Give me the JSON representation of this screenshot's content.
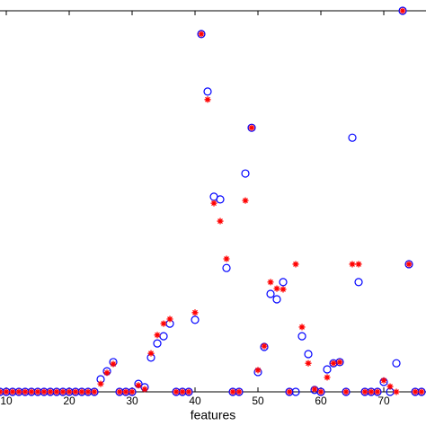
{
  "chart_data": {
    "type": "scatter",
    "xlabel": "features",
    "x": [
      9,
      10,
      11,
      12,
      13,
      14,
      15,
      16,
      17,
      18,
      19,
      20,
      21,
      22,
      23,
      24,
      25,
      26,
      27,
      28,
      29,
      30,
      31,
      32,
      33,
      34,
      35,
      36,
      37,
      38,
      39,
      40,
      41,
      42,
      43,
      44,
      45,
      46,
      47,
      48,
      49,
      50,
      51,
      52,
      53,
      54,
      55,
      56,
      57,
      58,
      59,
      60,
      61,
      62,
      63,
      64,
      65,
      66,
      67,
      68,
      69,
      70,
      71,
      72,
      73,
      74,
      75,
      76
    ],
    "series": [
      {
        "marker": "circle",
        "color": "#0000ff",
        "values": [
          0,
          0,
          0,
          0,
          0,
          0,
          0,
          0,
          0,
          0,
          0,
          0,
          0,
          0,
          0,
          0,
          3.3,
          5.4,
          7.8,
          0,
          0,
          0,
          2.1,
          1.2,
          9,
          12.7,
          14.6,
          17.9,
          0,
          0,
          0,
          18.9,
          93.9,
          78.8,
          51.2,
          50.5,
          32.5,
          0,
          0,
          57.3,
          69.3,
          5.2,
          11.8,
          25.7,
          24.3,
          28.8,
          0,
          0,
          14.6,
          9.9,
          0.5,
          0,
          5.9,
          7.5,
          7.8,
          0,
          66.7,
          28.8,
          0,
          0,
          0,
          2.6,
          0,
          7.5,
          100,
          33.5,
          0,
          0
        ]
      },
      {
        "marker": "star",
        "color": "#ff0000",
        "values": [
          0,
          0,
          0,
          0,
          0,
          0,
          0,
          0,
          0,
          0,
          0,
          0,
          0,
          0,
          0,
          0,
          2.1,
          5,
          7.3,
          0,
          0,
          0,
          1.7,
          0.7,
          10.1,
          14.9,
          17.9,
          19.1,
          0,
          0,
          0,
          20.8,
          93.9,
          76.7,
          49.5,
          44.8,
          34.9,
          0,
          0,
          50.2,
          69.3,
          5.7,
          12,
          28.8,
          27.1,
          26.9,
          0,
          33.5,
          17,
          7.5,
          0.7,
          0,
          3.8,
          7.5,
          7.8,
          0,
          33.5,
          33.5,
          0,
          0,
          0,
          3,
          1.4,
          0,
          100,
          33.5,
          0,
          0
        ]
      }
    ],
    "xlim": [
      9,
      76.71
    ],
    "xticks": [
      10,
      20,
      30,
      40,
      50,
      60,
      70
    ],
    "ylim": [
      0,
      100
    ]
  }
}
